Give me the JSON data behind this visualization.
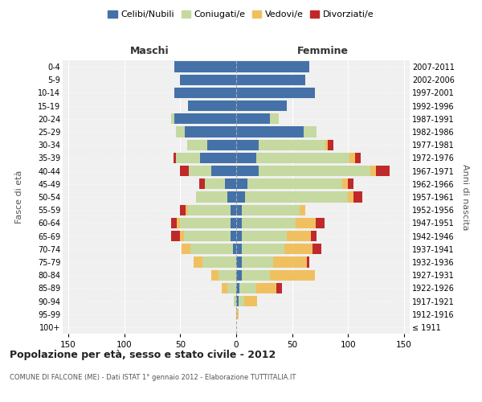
{
  "age_groups": [
    "100+",
    "95-99",
    "90-94",
    "85-89",
    "80-84",
    "75-79",
    "70-74",
    "65-69",
    "60-64",
    "55-59",
    "50-54",
    "45-49",
    "40-44",
    "35-39",
    "30-34",
    "25-29",
    "20-24",
    "15-19",
    "10-14",
    "5-9",
    "0-4"
  ],
  "birth_years": [
    "≤ 1911",
    "1912-1916",
    "1917-1921",
    "1922-1926",
    "1927-1931",
    "1932-1936",
    "1937-1941",
    "1942-1946",
    "1947-1951",
    "1952-1956",
    "1957-1961",
    "1962-1966",
    "1967-1971",
    "1972-1976",
    "1977-1981",
    "1982-1986",
    "1987-1991",
    "1992-1996",
    "1997-2001",
    "2002-2006",
    "2007-2011"
  ],
  "maschi": {
    "celibi": [
      0,
      0,
      0,
      0,
      0,
      0,
      3,
      5,
      5,
      5,
      8,
      10,
      22,
      32,
      26,
      46,
      55,
      43,
      55,
      50,
      55
    ],
    "coniugati": [
      0,
      0,
      2,
      8,
      16,
      30,
      38,
      42,
      45,
      38,
      28,
      18,
      20,
      22,
      18,
      8,
      3,
      0,
      0,
      0,
      0
    ],
    "vedovi": [
      0,
      0,
      0,
      5,
      6,
      8,
      8,
      3,
      3,
      2,
      0,
      0,
      0,
      0,
      0,
      0,
      0,
      0,
      0,
      0,
      0
    ],
    "divorziati": [
      0,
      0,
      0,
      0,
      0,
      0,
      0,
      8,
      5,
      5,
      0,
      5,
      8,
      2,
      0,
      0,
      0,
      0,
      0,
      0,
      0
    ]
  },
  "femmine": {
    "nubili": [
      0,
      0,
      2,
      3,
      5,
      5,
      5,
      5,
      5,
      5,
      8,
      10,
      20,
      18,
      20,
      60,
      30,
      45,
      70,
      62,
      65
    ],
    "coniugate": [
      0,
      0,
      5,
      15,
      25,
      28,
      38,
      40,
      48,
      52,
      92,
      85,
      100,
      83,
      60,
      12,
      8,
      0,
      0,
      0,
      0
    ],
    "vedove": [
      0,
      2,
      12,
      18,
      40,
      30,
      25,
      22,
      18,
      5,
      5,
      5,
      5,
      5,
      2,
      0,
      0,
      0,
      0,
      0,
      0
    ],
    "divorziate": [
      0,
      0,
      0,
      5,
      0,
      2,
      8,
      5,
      8,
      0,
      8,
      5,
      12,
      5,
      5,
      0,
      0,
      0,
      0,
      0,
      0
    ]
  },
  "colors": {
    "celibi": "#4472a8",
    "coniugati": "#c5d9a0",
    "vedovi": "#f0c060",
    "divorziati": "#c0292a"
  },
  "legend_labels": [
    "Celibi/Nubili",
    "Coniugati/e",
    "Vedovi/e",
    "Divorziati/e"
  ],
  "title": "Popolazione per età, sesso e stato civile - 2012",
  "subtitle": "COMUNE DI FALCONE (ME) - Dati ISTAT 1° gennaio 2012 - Elaborazione TUTTITALIA.IT",
  "xlabel_left": "Maschi",
  "xlabel_right": "Femmine",
  "ylabel_left": "Fasce di età",
  "ylabel_right": "Anni di nascita",
  "xlim": 155,
  "background_color": "#ffffff",
  "plot_bg": "#f0f0f0",
  "grid_color": "#ffffff"
}
